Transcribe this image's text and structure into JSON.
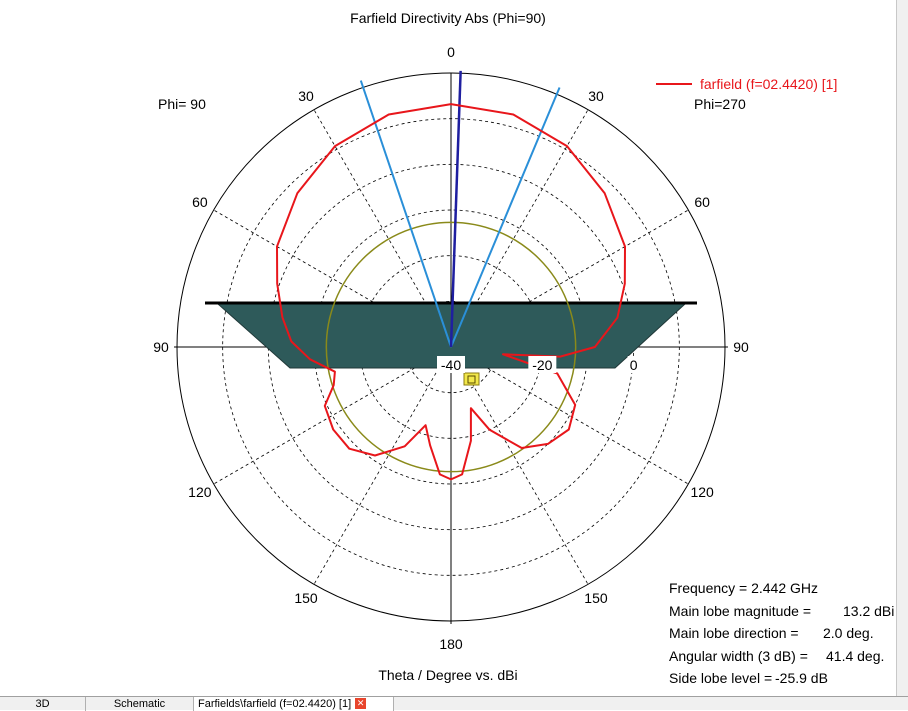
{
  "chart_data": {
    "type": "polar",
    "title": "Farfield Directivity Abs (Phi=90)",
    "xlabel": "Theta / Degree vs. dBi",
    "phi_left": "Phi= 90",
    "phi_right": "Phi=270",
    "angle_tick_labels": [
      {
        "deg": 0,
        "label": "0"
      },
      {
        "deg": 30,
        "label": "30"
      },
      {
        "deg": -30,
        "label": "30"
      },
      {
        "deg": 60,
        "label": "60"
      },
      {
        "deg": -60,
        "label": "60"
      },
      {
        "deg": 90,
        "label": "90"
      },
      {
        "deg": -90,
        "label": "90"
      },
      {
        "deg": 120,
        "label": "120"
      },
      {
        "deg": -120,
        "label": "120"
      },
      {
        "deg": 150,
        "label": "150"
      },
      {
        "deg": -150,
        "label": "150"
      },
      {
        "deg": 180,
        "label": "180"
      }
    ],
    "radial_ticks": [
      {
        "value": -40,
        "label": "-40"
      },
      {
        "value": -20,
        "label": "-20"
      },
      {
        "value": 0,
        "label": "0"
      }
    ],
    "r_range": [
      -40,
      20
    ],
    "grid": true,
    "legend_position": "top-right",
    "series": [
      {
        "name": "farfield (f=02.4420) [1]",
        "color": "#e8161b",
        "points": [
          {
            "theta": 0,
            "dbi": 13.2
          },
          {
            "theta": 15,
            "dbi": 12.7
          },
          {
            "theta": 30,
            "dbi": 10.8
          },
          {
            "theta": 45,
            "dbi": 7.6
          },
          {
            "theta": 60,
            "dbi": 4.0
          },
          {
            "theta": 70,
            "dbi": 0.5
          },
          {
            "theta": 80,
            "dbi": -3.0
          },
          {
            "theta": 90,
            "dbi": -8.5
          },
          {
            "theta": 95,
            "dbi": -16.0
          },
          {
            "theta": 98,
            "dbi": -28.5
          },
          {
            "theta": 104,
            "dbi": -16.0
          },
          {
            "theta": 115,
            "dbi": -10.0
          },
          {
            "theta": 125,
            "dbi": -8.5
          },
          {
            "theta": 135,
            "dbi": -10.0
          },
          {
            "theta": 145,
            "dbi": -13.0
          },
          {
            "theta": 155,
            "dbi": -20.0
          },
          {
            "theta": 162,
            "dbi": -25.9
          },
          {
            "theta": 168,
            "dbi": -19.0
          },
          {
            "theta": 175,
            "dbi": -12.0
          },
          {
            "theta": 180,
            "dbi": -11.0
          },
          {
            "theta": -175,
            "dbi": -12.0
          },
          {
            "theta": -168,
            "dbi": -18.0
          },
          {
            "theta": -162,
            "dbi": -22.0
          },
          {
            "theta": -155,
            "dbi": -16.0
          },
          {
            "theta": -145,
            "dbi": -11.0
          },
          {
            "theta": -135,
            "dbi": -8.5
          },
          {
            "theta": -125,
            "dbi": -8.5
          },
          {
            "theta": -115,
            "dbi": -9.5
          },
          {
            "theta": -108,
            "dbi": -13.0
          },
          {
            "theta": -102,
            "dbi": -14.0
          },
          {
            "theta": -95,
            "dbi": -9.0
          },
          {
            "theta": -88,
            "dbi": -5.0
          },
          {
            "theta": -80,
            "dbi": -2.5
          },
          {
            "theta": -70,
            "dbi": 0.5
          },
          {
            "theta": -60,
            "dbi": 4.0
          },
          {
            "theta": -45,
            "dbi": 7.6
          },
          {
            "theta": -30,
            "dbi": 10.8
          },
          {
            "theta": -15,
            "dbi": 12.7
          },
          {
            "theta": 0,
            "dbi": 13.2
          }
        ]
      }
    ],
    "markers": {
      "main_lobe_direction_deg": 2.0,
      "beamwidth_edges_deg": [
        -18.7,
        22.7
      ],
      "threshold_circle_dbi": -12.7
    },
    "info": {
      "frequency": "Frequency = 2.442 GHz",
      "main_lobe_magnitude_key": "Main lobe magnitude =",
      "main_lobe_magnitude_val": "13.2 dBi",
      "main_lobe_direction_key": "Main lobe direction =",
      "main_lobe_direction_val": "2.0 deg.",
      "angular_width_key": "Angular width (3 dB) =",
      "angular_width_val": "41.4 deg.",
      "side_lobe_key": "Side lobe level =",
      "side_lobe_val": "-25.9 dB"
    }
  },
  "colors": {
    "curve": "#e8161b",
    "main_lobe": "#1f1fa0",
    "beamwidth": "#2a8fd8",
    "threshold": "#8a8a1a",
    "antenna_fill": "#2e5a5a"
  },
  "tabs": [
    {
      "label": "3D"
    },
    {
      "label": "Schematic"
    },
    {
      "label": "Farfields\\farfield (f=02.4420) [1]"
    }
  ]
}
